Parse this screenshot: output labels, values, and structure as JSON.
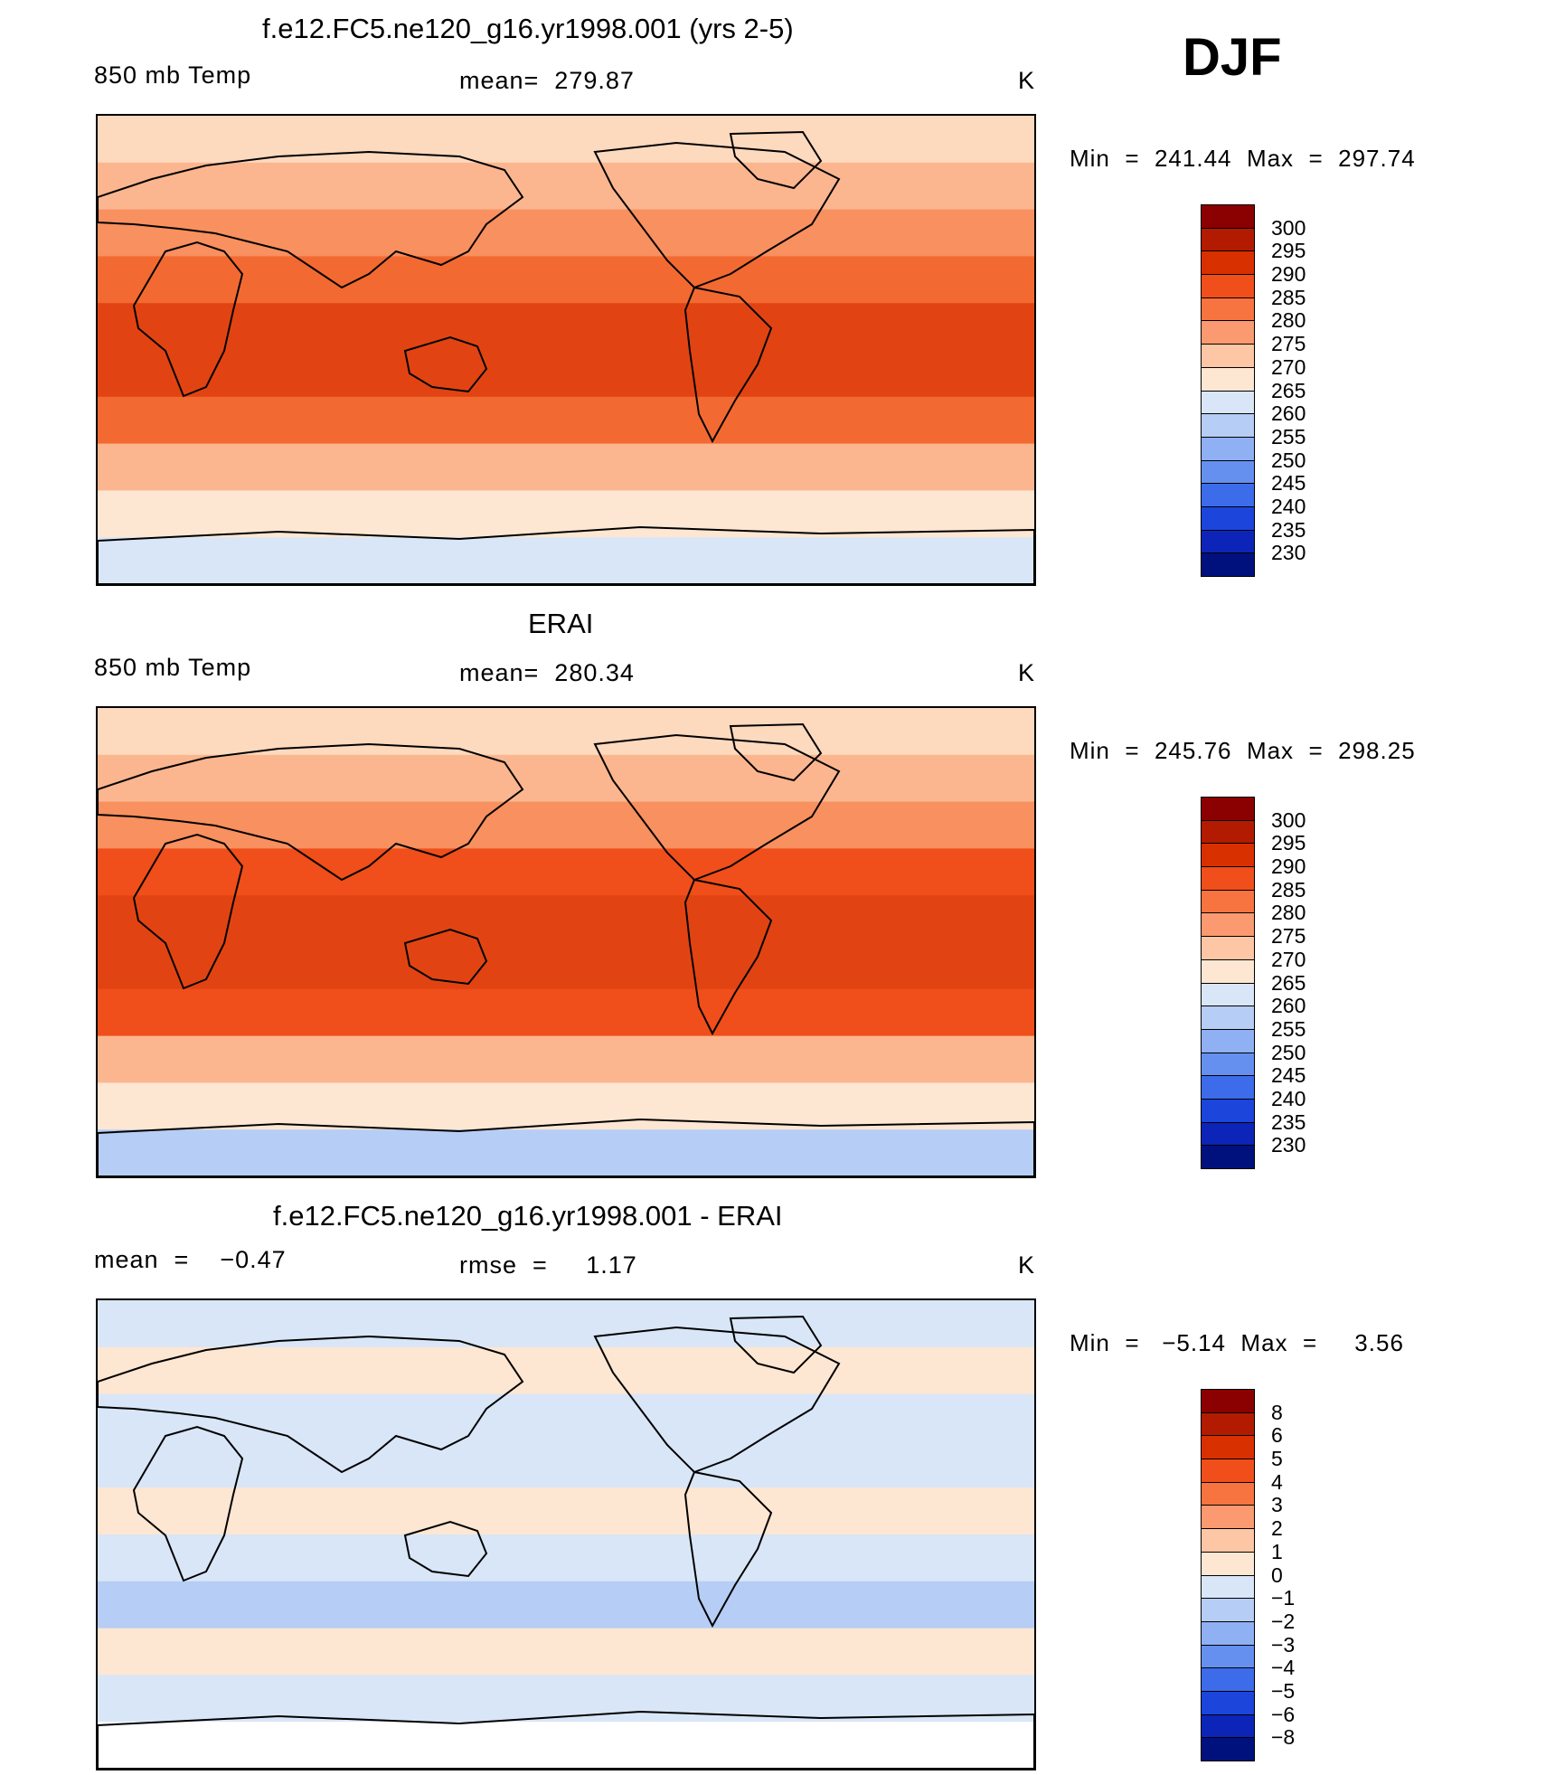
{
  "season": "DJF",
  "panels": [
    {
      "title": "f.e12.FC5.ne120_g16.yr1998.001 (yrs 2-5)",
      "left_label": "850 mb Temp",
      "center_label": "mean=  279.87",
      "units": "K",
      "minmax": "Min  =  241.44  Max  =  297.74",
      "colorbar": {
        "labels": [
          "300",
          "295",
          "290",
          "285",
          "280",
          "275",
          "270",
          "265",
          "260",
          "255",
          "250",
          "245",
          "240",
          "235",
          "230"
        ],
        "colors": [
          "#8b0000",
          "#b31b00",
          "#d93000",
          "#f04e1a",
          "#f77440",
          "#fb9a70",
          "#fdc6a4",
          "#fde6d2",
          "#d8e6f7",
          "#b6cdf5",
          "#8fb0f2",
          "#6690ef",
          "#3d6cea",
          "#1c45dc",
          "#0c25b8",
          "#00117d"
        ]
      },
      "bands": [
        "#fdd9be",
        "#fbb68f",
        "#f8905f",
        "#f26a32",
        "#e14412",
        "#e14412",
        "#f26a32",
        "#fbb68f",
        "#fde6d2",
        "#d8e6f7"
      ]
    },
    {
      "title": "ERAI",
      "left_label": "850 mb Temp",
      "center_label": "mean=  280.34",
      "units": "K",
      "minmax": "Min  =  245.76  Max  =  298.25",
      "colorbar": {
        "labels": [
          "300",
          "295",
          "290",
          "285",
          "280",
          "275",
          "270",
          "265",
          "260",
          "255",
          "250",
          "245",
          "240",
          "235",
          "230"
        ],
        "colors": [
          "#8b0000",
          "#b31b00",
          "#d93000",
          "#f04e1a",
          "#f77440",
          "#fb9a70",
          "#fdc6a4",
          "#fde6d2",
          "#d8e6f7",
          "#b6cdf5",
          "#8fb0f2",
          "#6690ef",
          "#3d6cea",
          "#1c45dc",
          "#0c25b8",
          "#00117d"
        ]
      },
      "bands": [
        "#fdd9be",
        "#fbb68f",
        "#f8905f",
        "#f04e1a",
        "#e14412",
        "#e14412",
        "#f04e1a",
        "#fbb68f",
        "#fde6d2",
        "#b6cdf5"
      ]
    },
    {
      "title": "f.e12.FC5.ne120_g16.yr1998.001 - ERAI",
      "left_label": "mean  =    −0.47",
      "center_label": "rmse  =     1.17",
      "units": "K",
      "minmax": "Min  =   −5.14  Max  =     3.56",
      "colorbar": {
        "labels": [
          "8",
          "6",
          "5",
          "4",
          "3",
          "2",
          "1",
          "0",
          "−1",
          "−2",
          "−3",
          "−4",
          "−5",
          "−6",
          "−8"
        ],
        "colors": [
          "#8b0000",
          "#b31b00",
          "#d93000",
          "#f04e1a",
          "#f77440",
          "#fb9a70",
          "#fdc6a4",
          "#fde6d2",
          "#d8e6f7",
          "#b6cdf5",
          "#8fb0f2",
          "#6690ef",
          "#3d6cea",
          "#1c45dc",
          "#0c25b8",
          "#00117d"
        ]
      },
      "bands": [
        "#d8e6f7",
        "#fde6d2",
        "#d8e6f7",
        "#d8e6f7",
        "#fde6d2",
        "#d8e6f7",
        "#b6cdf5",
        "#fde6d2",
        "#d8e6f7",
        "#ffffff"
      ]
    }
  ]
}
